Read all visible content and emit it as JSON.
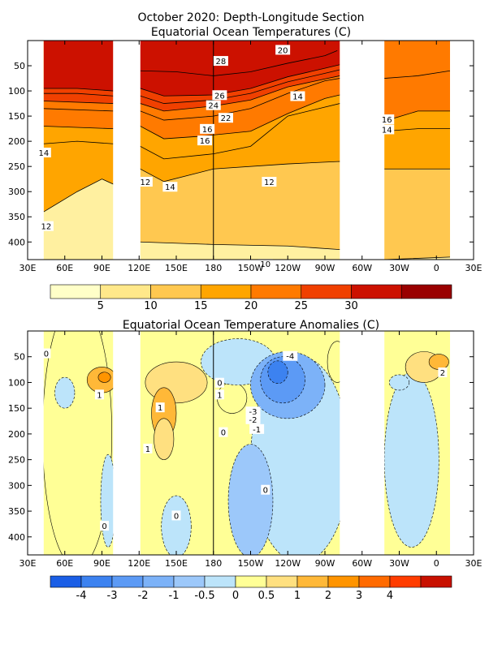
{
  "chart_data": [
    {
      "type": "heatmap",
      "title": "October 2020: Depth-Longitude Section",
      "subtitle": "Equatorial Ocean Temperatures (C)",
      "xlabel": "",
      "ylabel": "",
      "xlim": [
        30,
        390
      ],
      "ylim": [
        0,
        435
      ],
      "x_tick_values": [
        30,
        60,
        90,
        120,
        150,
        180,
        210,
        240,
        270,
        300,
        330,
        360,
        390
      ],
      "x_tick_labels": [
        "30E",
        "60E",
        "90E",
        "120E",
        "150E",
        "180",
        "150W",
        "120W",
        "90W",
        "60W",
        "30W",
        "0",
        "30E"
      ],
      "y_tick_values": [
        50,
        100,
        150,
        200,
        250,
        300,
        350,
        400
      ],
      "y_tick_labels": [
        "50",
        "100",
        "150",
        "200",
        "250",
        "300",
        "350",
        "400"
      ],
      "land_gaps_lon": [
        [
          99,
          121
        ],
        [
          282,
          318
        ]
      ],
      "data_lon_range": [
        43,
        371
      ],
      "reference_line_lon": 180,
      "isotherm_depths": [
        {
          "level": 28,
          "points": [
            [
              121,
              60
            ],
            [
              150,
              62
            ],
            [
              180,
              70
            ],
            [
              210,
              62
            ],
            [
              240,
              45
            ],
            [
              270,
              30
            ],
            [
              280,
              20
            ]
          ]
        },
        {
          "level": 26,
          "points": [
            [
              43,
              95
            ],
            [
              70,
              95
            ],
            [
              99,
              100
            ],
            [
              121,
              95
            ],
            [
              140,
              110
            ],
            [
              180,
              108
            ],
            [
              210,
              95
            ],
            [
              240,
              72
            ],
            [
              270,
              55
            ],
            [
              282,
              48
            ]
          ]
        },
        {
          "level": 24,
          "points": [
            [
              43,
              105
            ],
            [
              70,
              105
            ],
            [
              99,
              110
            ],
            [
              121,
              110
            ],
            [
              140,
              125
            ],
            [
              180,
              118
            ],
            [
              210,
              105
            ],
            [
              240,
              82
            ],
            [
              270,
              65
            ],
            [
              282,
              58
            ]
          ]
        },
        {
          "level": 22,
          "points": [
            [
              43,
              120
            ],
            [
              99,
              125
            ],
            [
              121,
              125
            ],
            [
              140,
              140
            ],
            [
              180,
              130
            ],
            [
              210,
              118
            ],
            [
              240,
              92
            ],
            [
              282,
              70
            ]
          ]
        },
        {
          "level": 20,
          "points": [
            [
              43,
              135
            ],
            [
              99,
              140
            ],
            [
              121,
              140
            ],
            [
              140,
              158
            ],
            [
              180,
              150
            ],
            [
              210,
              135
            ],
            [
              240,
              105
            ],
            [
              270,
              80
            ],
            [
              282,
              75
            ],
            [
              318,
              75
            ],
            [
              345,
              70
            ],
            [
              371,
              60
            ]
          ]
        },
        {
          "level": 16,
          "points": [
            [
              43,
              170
            ],
            [
              99,
              175
            ],
            [
              121,
              170
            ],
            [
              140,
              195
            ],
            [
              170,
              190
            ],
            [
              210,
              180
            ],
            [
              240,
              145
            ],
            [
              270,
              115
            ],
            [
              282,
              108
            ],
            [
              318,
              160
            ],
            [
              345,
              140
            ],
            [
              371,
              140
            ]
          ]
        },
        {
          "level": 14,
          "points": [
            [
              43,
              205
            ],
            [
              70,
              200
            ],
            [
              99,
              205
            ],
            [
              121,
              210
            ],
            [
              140,
              235
            ],
            [
              180,
              225
            ],
            [
              210,
              210
            ],
            [
              240,
              150
            ],
            [
              282,
              125
            ],
            [
              318,
              180
            ],
            [
              345,
              175
            ],
            [
              371,
              175
            ]
          ]
        },
        {
          "level": 12,
          "points": [
            [
              43,
              340
            ],
            [
              70,
              300
            ],
            [
              90,
              275
            ],
            [
              99,
              285
            ],
            [
              121,
              255
            ],
            [
              140,
              280
            ],
            [
              180,
              255
            ],
            [
              240,
              245
            ],
            [
              282,
              240
            ],
            [
              318,
              255
            ],
            [
              345,
              255
            ],
            [
              371,
              255
            ]
          ]
        },
        {
          "level": 10,
          "points": [
            [
              121,
              400
            ],
            [
              180,
              405
            ],
            [
              240,
              408
            ],
            [
              282,
              415
            ],
            [
              318,
              435
            ],
            [
              371,
              430
            ]
          ]
        }
      ],
      "contour_labels": [
        {
          "text": "28",
          "lon": 186,
          "depth": 42
        },
        {
          "text": "20",
          "lon": 236,
          "depth": 20
        },
        {
          "text": "26",
          "lon": 185,
          "depth": 110
        },
        {
          "text": "24",
          "lon": 180,
          "depth": 130
        },
        {
          "text": "14",
          "lon": 248,
          "depth": 112
        },
        {
          "text": "22",
          "lon": 190,
          "depth": 155
        },
        {
          "text": "16",
          "lon": 175,
          "depth": 177
        },
        {
          "text": "16",
          "lon": 173,
          "depth": 200
        },
        {
          "text": "16",
          "lon": 320,
          "depth": 158
        },
        {
          "text": "14",
          "lon": 320,
          "depth": 178
        },
        {
          "text": "14",
          "lon": 43,
          "depth": 224
        },
        {
          "text": "12",
          "lon": 125,
          "depth": 282
        },
        {
          "text": "14",
          "lon": 145,
          "depth": 292
        },
        {
          "text": "12",
          "lon": 225,
          "depth": 282
        },
        {
          "text": "12",
          "lon": 45,
          "depth": 370
        },
        {
          "text": "10",
          "lon": 222,
          "depth": 445
        }
      ],
      "colorbar": {
        "ticks": [
          "5",
          "10",
          "15",
          "20",
          "25",
          "30"
        ],
        "colors": [
          "#ffffc8",
          "#ffe88a",
          "#ffc850",
          "#ffa500",
          "#ff7a00",
          "#f04000",
          "#cc1100",
          "#990000"
        ]
      }
    },
    {
      "type": "heatmap",
      "title": "Equatorial Ocean Temperature Anomalies (C)",
      "xlabel": "",
      "ylabel": "",
      "xlim": [
        30,
        390
      ],
      "ylim": [
        0,
        435
      ],
      "x_tick_values": [
        30,
        60,
        90,
        120,
        150,
        180,
        210,
        240,
        270,
        300,
        330,
        360,
        390
      ],
      "x_tick_labels": [
        "30E",
        "60E",
        "90E",
        "120E",
        "150E",
        "180",
        "150W",
        "120W",
        "90W",
        "60W",
        "30W",
        "0",
        "30E"
      ],
      "y_tick_values": [
        50,
        100,
        150,
        200,
        250,
        300,
        350,
        400
      ],
      "y_tick_labels": [
        "50",
        "100",
        "150",
        "200",
        "250",
        "300",
        "350",
        "400"
      ],
      "land_gaps_lon": [
        [
          99,
          121
        ],
        [
          282,
          318
        ]
      ],
      "data_lon_range": [
        43,
        371
      ],
      "reference_line_lon": 180,
      "anomaly_blobs": [
        {
          "value": 0.25,
          "lon": 70,
          "depth": 200,
          "rlon": 28,
          "rdep": 260
        },
        {
          "value": 1.2,
          "lon": 90,
          "depth": 95,
          "rlon": 12,
          "rdep": 25
        },
        {
          "value": 2.2,
          "lon": 92,
          "depth": 90,
          "rlon": 5,
          "rdep": 10
        },
        {
          "value": -0.3,
          "lon": 60,
          "depth": 120,
          "rlon": 8,
          "rdep": 30
        },
        {
          "value": -0.3,
          "lon": 95,
          "depth": 330,
          "rlon": 6,
          "rdep": 90
        },
        {
          "value": 0.7,
          "lon": 150,
          "depth": 100,
          "rlon": 25,
          "rdep": 40
        },
        {
          "value": 1.3,
          "lon": 140,
          "depth": 160,
          "rlon": 10,
          "rdep": 50
        },
        {
          "value": 0.8,
          "lon": 140,
          "depth": 210,
          "rlon": 8,
          "rdep": 40
        },
        {
          "value": -0.3,
          "lon": 150,
          "depth": 380,
          "rlon": 12,
          "rdep": 60
        },
        {
          "value": 0.5,
          "lon": 195,
          "depth": 130,
          "rlon": 12,
          "rdep": 30
        },
        {
          "value": -0.3,
          "lon": 200,
          "depth": 60,
          "rlon": 30,
          "rdep": 45
        },
        {
          "value": -0.4,
          "lon": 250,
          "depth": 250,
          "rlon": 40,
          "rdep": 200
        },
        {
          "value": -0.5,
          "lon": 210,
          "depth": 330,
          "rlon": 18,
          "rdep": 110
        },
        {
          "value": -1.2,
          "lon": 240,
          "depth": 105,
          "rlon": 30,
          "rdep": 65
        },
        {
          "value": -2.3,
          "lon": 236,
          "depth": 95,
          "rlon": 18,
          "rdep": 45
        },
        {
          "value": -3.5,
          "lon": 232,
          "depth": 80,
          "rlon": 8,
          "rdep": 22
        },
        {
          "value": 0.3,
          "lon": 280,
          "depth": 60,
          "rlon": 8,
          "rdep": 40
        },
        {
          "value": -0.3,
          "lon": 340,
          "depth": 250,
          "rlon": 22,
          "rdep": 170
        },
        {
          "value": 0.8,
          "lon": 350,
          "depth": 70,
          "rlon": 15,
          "rdep": 30
        },
        {
          "value": 1.8,
          "lon": 362,
          "depth": 60,
          "rlon": 8,
          "rdep": 15
        },
        {
          "value": -0.2,
          "lon": 330,
          "depth": 100,
          "rlon": 8,
          "rdep": 15
        }
      ],
      "contour_labels": [
        {
          "text": "0",
          "lon": 45,
          "depth": 45
        },
        {
          "text": "1",
          "lon": 88,
          "depth": 125
        },
        {
          "text": "0",
          "lon": 92,
          "depth": 380
        },
        {
          "text": "1",
          "lon": 137,
          "depth": 150
        },
        {
          "text": "1",
          "lon": 127,
          "depth": 230
        },
        {
          "text": "0",
          "lon": 150,
          "depth": 360
        },
        {
          "text": "0",
          "lon": 185,
          "depth": 102
        },
        {
          "text": "1",
          "lon": 185,
          "depth": 125
        },
        {
          "text": "0",
          "lon": 188,
          "depth": 198
        },
        {
          "text": "-4",
          "lon": 242,
          "depth": 50
        },
        {
          "text": "-3",
          "lon": 212,
          "depth": 158
        },
        {
          "text": "-2",
          "lon": 212,
          "depth": 173
        },
        {
          "text": "-1",
          "lon": 215,
          "depth": 192
        },
        {
          "text": "0",
          "lon": 222,
          "depth": 310
        },
        {
          "text": "2",
          "lon": 365,
          "depth": 82
        }
      ],
      "colorbar": {
        "ticks": [
          "-4",
          "-3",
          "-2",
          "-1",
          "-0.5",
          "0",
          "0.5",
          "1",
          "2",
          "3",
          "4"
        ],
        "colors": [
          "#1a5ee6",
          "#3c82f0",
          "#5c9af5",
          "#7cb2f8",
          "#9cc8fa",
          "#bce4fa",
          "#ffff96",
          "#ffe080",
          "#ffb838",
          "#ff9400",
          "#ff6a00",
          "#ff3c00",
          "#c81000"
        ]
      }
    }
  ]
}
